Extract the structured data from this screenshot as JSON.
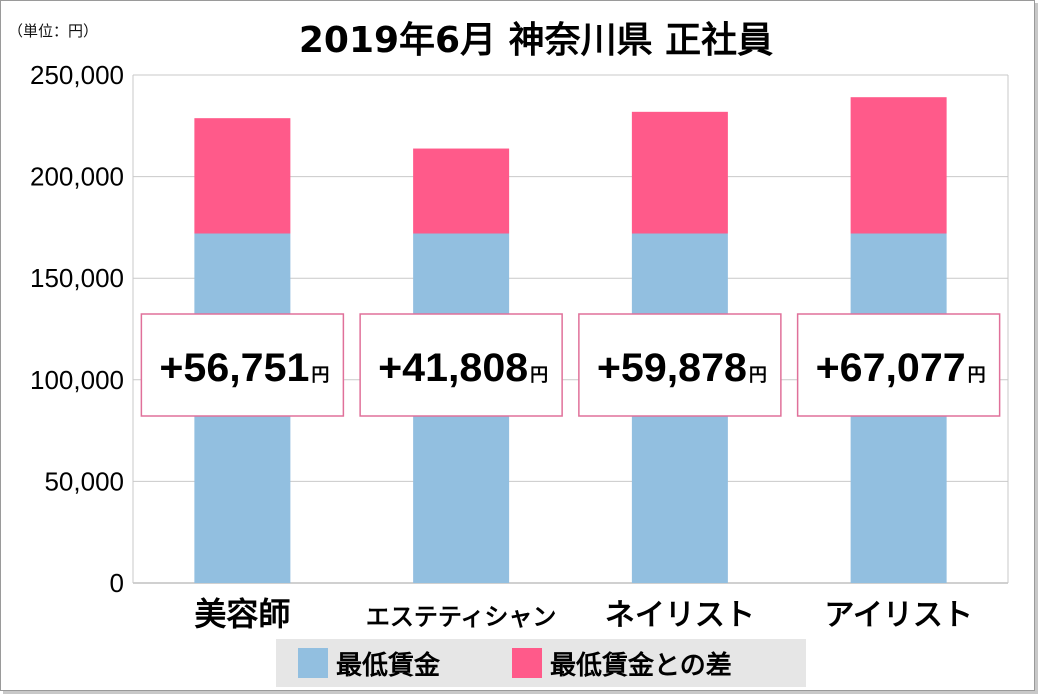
{
  "unit_label": "（単位：円）",
  "title": "2019年6月 神奈川県 正社員",
  "colors": {
    "base": "#92bfe0",
    "diff": "#ff5a8a",
    "annotation_border": "#e0709a",
    "grid": "#c9c9c9"
  },
  "chart_data": {
    "type": "bar",
    "stacked": true,
    "title": "2019年6月 神奈川県 正社員",
    "categories": [
      "美容師",
      "エステティシャン",
      "ネイリスト",
      "アイリスト"
    ],
    "series": [
      {
        "name": "最低賃金",
        "values": [
          172000,
          172000,
          172000,
          172000
        ]
      },
      {
        "name": "最低賃金との差",
        "values": [
          56751,
          41808,
          59878,
          67077
        ]
      }
    ],
    "annotations": [
      "+56,751",
      "+41,808",
      "+59,878",
      "+67,077"
    ],
    "annotation_unit": "円",
    "ylim": [
      0,
      250000
    ],
    "yticks": [
      0,
      50000,
      100000,
      150000,
      200000,
      250000
    ],
    "ytick_labels": [
      "0",
      "50,000",
      "100,000",
      "150,000",
      "200,000",
      "250,000"
    ],
    "grid": true,
    "legend": "bottom"
  }
}
